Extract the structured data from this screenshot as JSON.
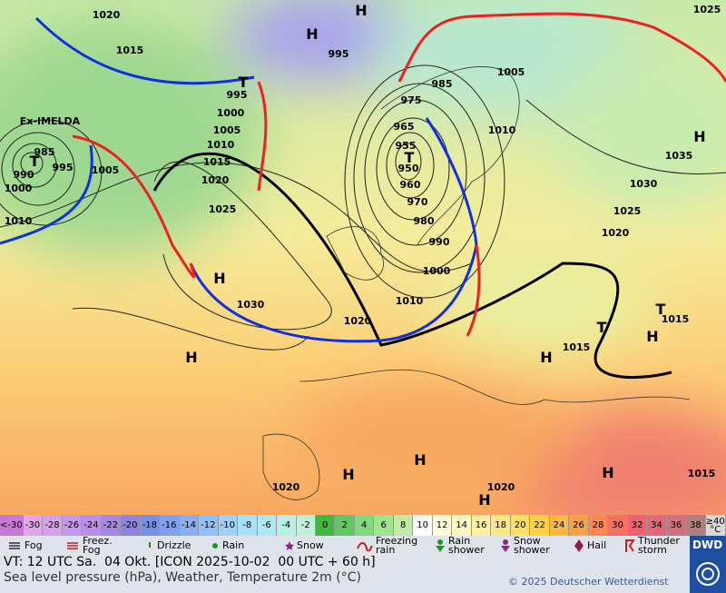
{
  "map": {
    "isobar_labels": [
      1020,
      1015,
      995,
      995,
      1000,
      1005,
      1010,
      1015,
      1020,
      1025,
      1030,
      1020,
      1010,
      1000,
      990,
      980,
      970,
      960,
      950,
      955,
      965,
      975,
      985,
      1005,
      1010,
      1035,
      1030,
      1025,
      1020,
      1015,
      1015,
      1020,
      1020,
      1015,
      1025,
      985,
      995,
      990,
      1000,
      1005,
      1010
    ],
    "system_labels": [
      "H",
      "H",
      "H",
      "H",
      "H",
      "H",
      "H",
      "H",
      "H",
      "H",
      "H",
      "T",
      "T",
      "T",
      "T",
      "T"
    ],
    "storm_name": "Ex-IMELDA"
  },
  "color_scale": {
    "labels": [
      "<-30",
      "-30",
      "-28",
      "-26",
      "-24",
      "-22",
      "-20",
      "-18",
      "-16",
      "-14",
      "-12",
      "-10",
      "-8",
      "-6",
      "-4",
      "-2",
      "0",
      "2",
      "4",
      "6",
      "8",
      "10",
      "12",
      "14",
      "16",
      "18",
      "20",
      "22",
      "24",
      "26",
      "28",
      "30",
      "32",
      "34",
      "36",
      "38",
      "≥40 °C"
    ],
    "colors": [
      "#c878d8",
      "#e4a4e8",
      "#d8a0ec",
      "#c898ec",
      "#b890e8",
      "#a488e4",
      "#8c84e0",
      "#7890e8",
      "#80a0f0",
      "#88b0f0",
      "#90c0f8",
      "#a0d0f8",
      "#a8e0f8",
      "#b0e8f0",
      "#b8f0e8",
      "#c0f0d8",
      "#40b840",
      "#60c860",
      "#80d880",
      "#a0e490",
      "#c0eca8",
      "#ffffff",
      "#ffffe0",
      "#fff8c0",
      "#fff0a0",
      "#ffe880",
      "#ffe060",
      "#ffd040",
      "#ffb840",
      "#ffa040",
      "#ff8850",
      "#f87060",
      "#f06070",
      "#e06878",
      "#d07080",
      "#b08080",
      "#d8d8d8"
    ]
  },
  "legend": [
    "Fog",
    "Freez. Fog",
    "Drizzle",
    "Rain",
    "Snow",
    "Freezing rain",
    "Rain shower",
    "Snow shower",
    "Hail",
    "Thunder storm"
  ],
  "footer": {
    "valid_time": "VT: 12 UTC Sa.  04 Okt. [ICON 2025-10-02  00 UTC + 60 h]",
    "description": "Sea level pressure (hPa), Weather, Temperature 2m (°C)",
    "copyright": "© 2025 Deutscher Wetterdienst",
    "logo": "DWD"
  }
}
